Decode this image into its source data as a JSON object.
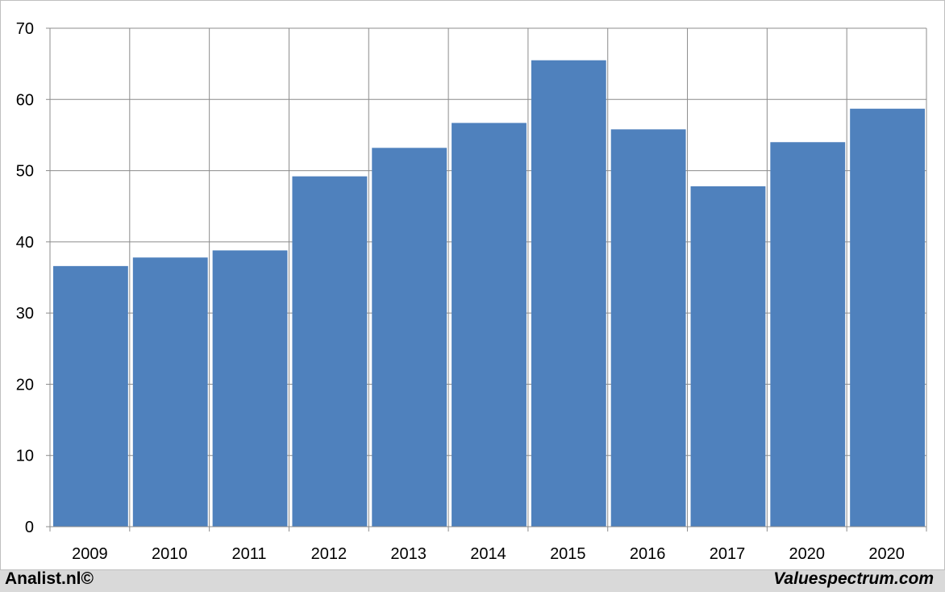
{
  "chart_data": {
    "type": "bar",
    "title": "",
    "xlabel": "",
    "ylabel": "",
    "categories": [
      "2009",
      "2010",
      "2011",
      "2012",
      "2013",
      "2014",
      "2015",
      "2016",
      "2017",
      "2020",
      "2020"
    ],
    "values": [
      36.6,
      37.8,
      38.8,
      49.2,
      53.2,
      56.7,
      65.5,
      55.8,
      47.8,
      54.0,
      58.7
    ],
    "ylim": [
      0,
      70
    ],
    "yticks": [
      0,
      10,
      20,
      30,
      40,
      50,
      60,
      70
    ],
    "grid": true,
    "legend": "none",
    "bar_color": "#4f81bd",
    "grid_color": "#8c8c8c"
  },
  "footer": {
    "source_left": "Analist.nl©",
    "source_right": "Valuespectrum.com"
  }
}
